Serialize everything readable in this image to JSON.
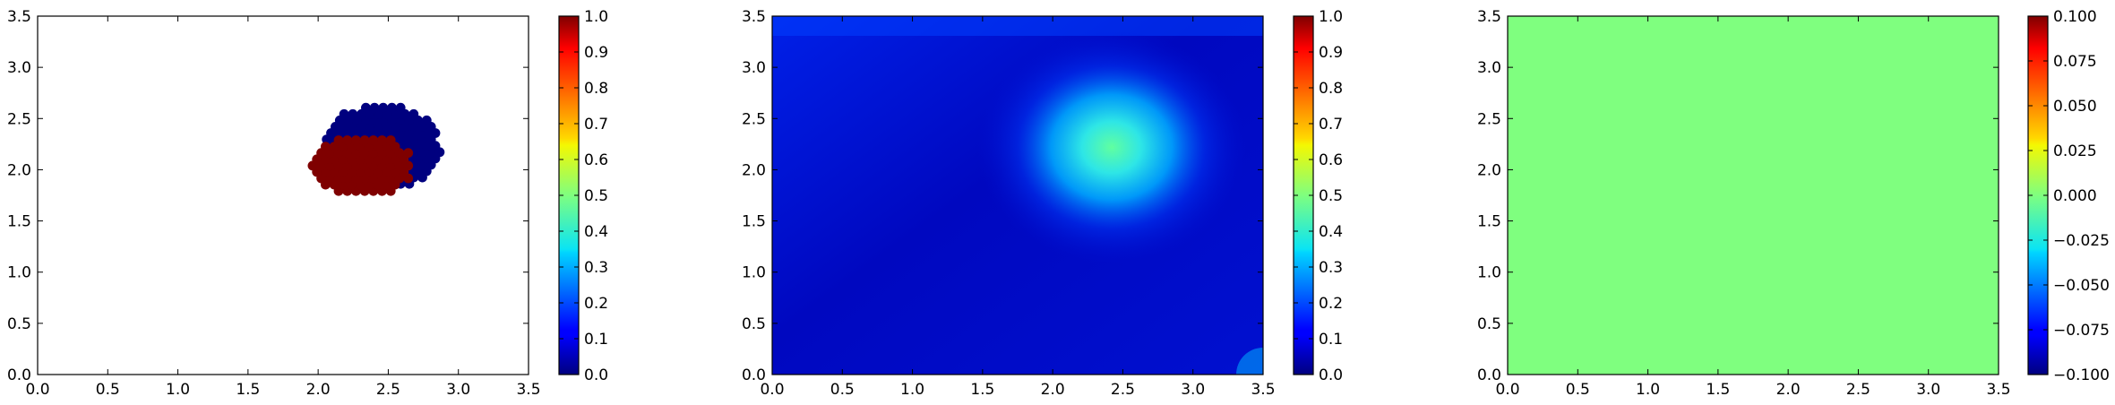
{
  "chart_data": [
    {
      "type": "scatter",
      "title": "",
      "xlabel": "",
      "ylabel": "",
      "xlim": [
        0.0,
        3.5
      ],
      "ylim": [
        0.0,
        3.5
      ],
      "x_ticks": [
        "0.0",
        "0.5",
        "1.0",
        "1.5",
        "2.0",
        "2.5",
        "3.0",
        "3.5"
      ],
      "y_ticks": [
        "0.0",
        "0.5",
        "1.0",
        "1.5",
        "2.0",
        "2.5",
        "3.0",
        "3.5"
      ],
      "colormap": "jet",
      "colorbar": {
        "min": 0.0,
        "max": 1.0,
        "ticks": [
          "0.0",
          "0.1",
          "0.2",
          "0.3",
          "0.4",
          "0.5",
          "0.6",
          "0.7",
          "0.8",
          "0.9",
          "1.0"
        ]
      },
      "series": [
        {
          "value": 0.0,
          "color": "#00007f",
          "region": {
            "center": [
              2.45,
              2.22
            ],
            "radii": [
              0.42,
              0.42
            ]
          }
        },
        {
          "value": 1.0,
          "color": "#7f0000",
          "region": {
            "center": [
              2.32,
              2.04
            ],
            "radii": [
              0.36,
              0.31
            ]
          }
        }
      ],
      "grid": false
    },
    {
      "type": "heatmap",
      "title": "",
      "xlabel": "",
      "ylabel": "",
      "xlim": [
        0.0,
        3.5
      ],
      "ylim": [
        0.0,
        3.5
      ],
      "x_ticks": [
        "0.0",
        "0.5",
        "1.0",
        "1.5",
        "2.0",
        "2.5",
        "3.0",
        "3.5"
      ],
      "y_ticks": [
        "0.0",
        "0.5",
        "1.0",
        "1.5",
        "2.0",
        "2.5",
        "3.0",
        "3.5"
      ],
      "colormap": "jet",
      "colorbar": {
        "min": 0.0,
        "max": 1.0,
        "ticks": [
          "0.0",
          "0.1",
          "0.2",
          "0.3",
          "0.4",
          "0.5",
          "0.6",
          "0.7",
          "0.8",
          "0.9",
          "1.0"
        ]
      },
      "background_value": 0.15,
      "peak": {
        "x": 2.42,
        "y": 2.22,
        "value": 0.48
      },
      "grid": false
    },
    {
      "type": "heatmap",
      "title": "",
      "xlabel": "",
      "ylabel": "",
      "xlim": [
        0.0,
        3.5
      ],
      "ylim": [
        0.0,
        3.5
      ],
      "x_ticks": [
        "0.0",
        "0.5",
        "1.0",
        "1.5",
        "2.0",
        "2.5",
        "3.0",
        "3.5"
      ],
      "y_ticks": [
        "0.0",
        "0.5",
        "1.0",
        "1.5",
        "2.0",
        "2.5",
        "3.0",
        "3.5"
      ],
      "colormap": "jet",
      "colorbar": {
        "min": -0.1,
        "max": 0.1,
        "ticks": [
          "−0.100",
          "−0.075",
          "−0.050",
          "−0.025",
          "0.000",
          "0.025",
          "0.050",
          "0.075",
          "0.100"
        ]
      },
      "uniform_value": 0.0,
      "fill_color": "#7fff7f",
      "grid": false
    }
  ]
}
